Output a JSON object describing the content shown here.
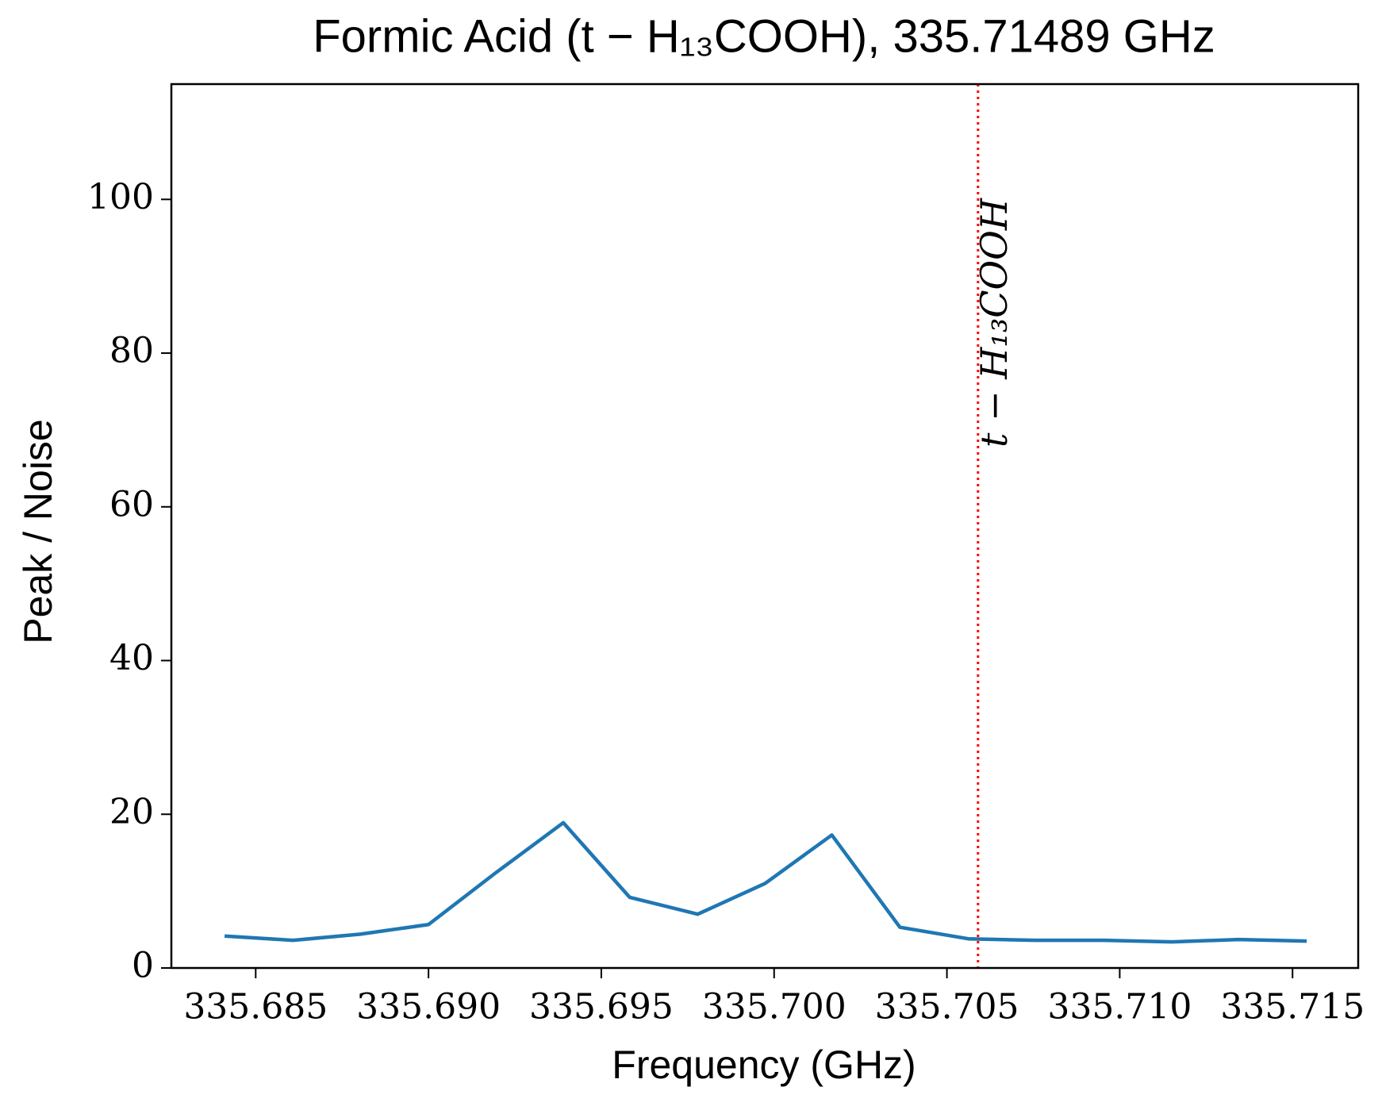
{
  "chart_data": {
    "type": "line",
    "title": "Formic Acid (t − H₁₃COOH), 335.71489 GHz",
    "x_label": "Frequency (GHz)",
    "y_label": "Peak / Noise",
    "x": [
      335.6841,
      335.68608,
      335.68803,
      335.69,
      335.69192,
      335.6939,
      335.69582,
      335.69779,
      335.69974,
      335.70167,
      335.70364,
      335.70562,
      335.70756,
      335.70954,
      335.71151,
      335.71344,
      335.71541
    ],
    "series": [
      {
        "name": "Peak / Noise",
        "color": "#1f77b4",
        "values": [
          4.15,
          3.6,
          4.4,
          5.65,
          12.3,
          18.9,
          9.2,
          7.0,
          11.0,
          17.3,
          5.3,
          3.8,
          3.6,
          3.6,
          3.4,
          3.7,
          3.5
        ]
      }
    ],
    "annotations": [
      {
        "x": 335.7059,
        "label": "t − H₁₃COOH",
        "color": "#ff0000"
      }
    ],
    "xlim": [
      335.68256,
      335.7169
    ],
    "xticks": [
      335.685,
      {
        "value": 335.69,
        "label": "335.690"
      },
      335.695,
      {
        "value": 335.7,
        "label": "335.700"
      },
      335.705,
      {
        "value": 335.71,
        "label": "335.710"
      },
      335.715
    ],
    "ylim": [
      0,
      115
    ],
    "yticks": [
      0,
      20,
      40,
      60,
      80,
      100
    ],
    "grid": false
  }
}
